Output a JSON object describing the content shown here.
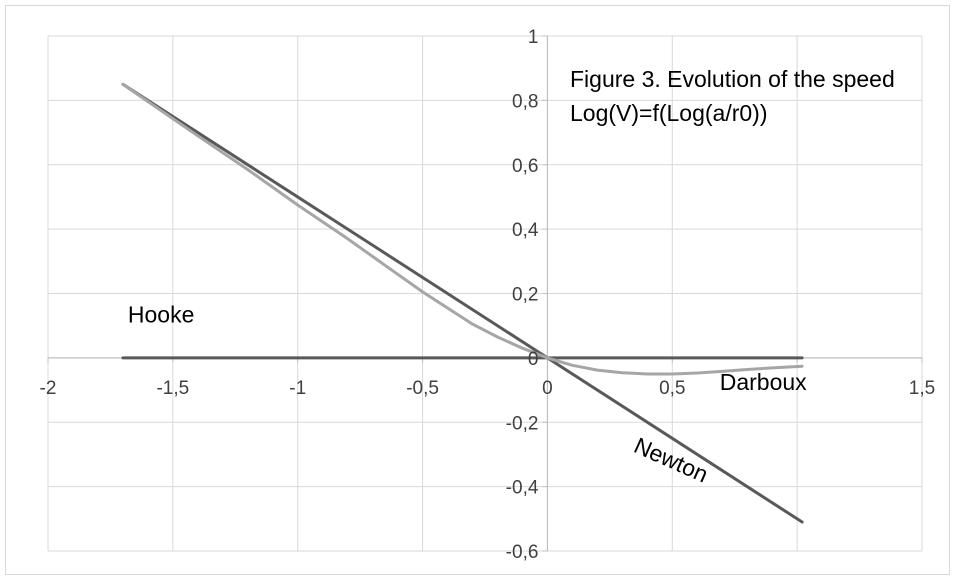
{
  "colors": {
    "background": "#ffffff",
    "border": "#d9d9d9",
    "grid": "#d9d9d9",
    "axis": "#bfbfbf",
    "series_dark": "#595959",
    "series_light": "#a6a6a6"
  },
  "chart_data": {
    "type": "line",
    "title_lines": [
      "Figure 3. Evolution of the speed",
      "Log(V)=f(Log(a/r0))"
    ],
    "xlabel": "",
    "ylabel": "",
    "xlim": [
      -2,
      1.5
    ],
    "ylim": [
      -0.6,
      1
    ],
    "grid": true,
    "legend": "none",
    "x_ticks": [
      {
        "value": -2,
        "label": "-2"
      },
      {
        "value": -1.5,
        "label": "-1,5"
      },
      {
        "value": -1,
        "label": "-1"
      },
      {
        "value": -0.5,
        "label": "-0,5"
      },
      {
        "value": 0,
        "label": "0"
      },
      {
        "value": 0.5,
        "label": "0,5"
      },
      {
        "value": 1,
        "label": ""
      },
      {
        "value": 1.5,
        "label": "1,5"
      }
    ],
    "y_ticks": [
      {
        "value": 1,
        "label": "1"
      },
      {
        "value": 0.8,
        "label": "0,8"
      },
      {
        "value": 0.6,
        "label": "0,6"
      },
      {
        "value": 0.4,
        "label": "0,4"
      },
      {
        "value": 0.2,
        "label": "0,2"
      },
      {
        "value": 0,
        "label": "0"
      },
      {
        "value": -0.2,
        "label": "-0,2"
      },
      {
        "value": -0.4,
        "label": "-0,4"
      },
      {
        "value": -0.6,
        "label": "-0,6"
      }
    ],
    "series": [
      {
        "color": "#595959",
        "x": [
          -1.7,
          1.02
        ],
        "y": [
          0.85,
          -0.51
        ]
      },
      {
        "color": "#595959",
        "x": [
          -1.7,
          1.02
        ],
        "y": [
          0,
          0
        ]
      },
      {
        "color": "#a6a6a6",
        "x": [
          -1.7,
          -1.4,
          -1.2,
          -1.0,
          -0.8,
          -0.6,
          -0.5,
          -0.4,
          -0.3,
          -0.2,
          -0.1,
          0,
          0.1,
          0.2,
          0.3,
          0.4,
          0.5,
          0.6,
          0.7,
          0.8,
          0.9,
          1.02
        ],
        "y": [
          0.85,
          0.69,
          0.585,
          0.475,
          0.37,
          0.26,
          0.205,
          0.155,
          0.105,
          0.065,
          0.03,
          0,
          -0.023,
          -0.038,
          -0.046,
          -0.05,
          -0.05,
          -0.047,
          -0.042,
          -0.036,
          -0.031,
          -0.026
        ]
      }
    ],
    "annotations": [
      {
        "text": "Hooke",
        "x": -1.68,
        "y": 0.11,
        "rotate": 0
      },
      {
        "text": "Darboux",
        "x": 0.69,
        "y": -0.1,
        "rotate": 0
      },
      {
        "text": "Newton",
        "x": 0.34,
        "y": -0.29,
        "rotate": 24
      }
    ]
  }
}
